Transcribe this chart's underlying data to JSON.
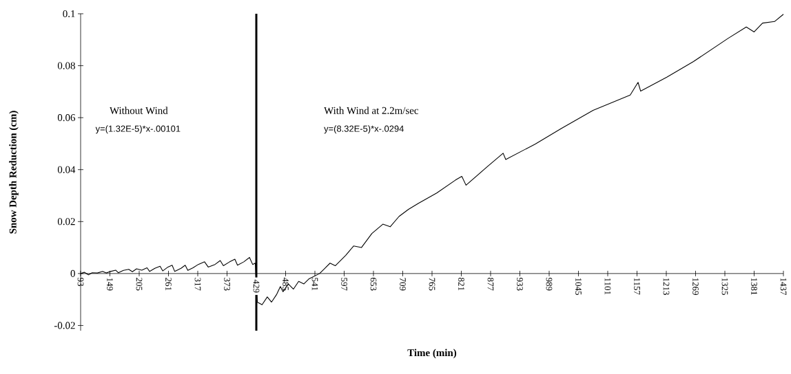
{
  "chart_data": {
    "type": "line",
    "xlabel": "Time (min)",
    "ylabel": "Snow Depth Reduction (cm)",
    "annotations": [
      "Without Wind",
      "y=(1.32E-5)*x-.00101",
      "With Wind at 2.2m/sec",
      "y=(8.32E-5)*x-.0294"
    ],
    "xlim": [
      93,
      1437
    ],
    "ylim": [
      -0.022,
      0.1
    ],
    "xticks": [
      93,
      149,
      205,
      261,
      317,
      373,
      429,
      485,
      541,
      597,
      653,
      709,
      765,
      821,
      877,
      933,
      989,
      1045,
      1101,
      1157,
      1213,
      1269,
      1325,
      1381,
      1437
    ],
    "yticks": [
      -0.02,
      0,
      0.02,
      0.04,
      0.06,
      0.08,
      0.1
    ],
    "marker": "none",
    "line_style": "solid",
    "ref_lines": [
      {
        "axis": "x",
        "value": 429,
        "color": "#000000"
      }
    ],
    "series": [
      {
        "color": "#000000",
        "x": [
          93,
          100,
          108,
          115,
          125,
          135,
          142,
          150,
          160,
          165,
          175,
          185,
          192,
          200,
          210,
          220,
          225,
          235,
          245,
          250,
          260,
          268,
          273,
          285,
          293,
          298,
          308,
          318,
          330,
          337,
          350,
          360,
          366,
          378,
          388,
          393,
          405,
          416,
          422,
          427,
          431,
          440,
          450,
          458,
          468,
          475,
          480,
          490,
          500,
          510,
          520,
          530,
          550,
          560,
          570,
          580,
          600,
          615,
          630,
          650,
          671,
          685,
          702,
          720,
          739,
          774,
          810,
          822,
          830,
          870,
          901,
          906,
          962,
          1012,
          1073,
          1144,
          1159,
          1164,
          1214,
          1265,
          1331,
          1366,
          1381,
          1397,
          1420,
          1437
        ],
        "values": [
          0,
          0.0005,
          -0.0005,
          0.0003,
          0.0002,
          0.0008,
          0.0002,
          0.0008,
          0.0013,
          0.0003,
          0.0012,
          0.0016,
          0.0007,
          0.0018,
          0.0013,
          0.0022,
          0.0008,
          0.002,
          0.0028,
          0.001,
          0.0025,
          0.0032,
          0.0008,
          0.002,
          0.0032,
          0.0012,
          0.0022,
          0.0035,
          0.0045,
          0.0025,
          0.0035,
          0.005,
          0.003,
          0.0045,
          0.0055,
          0.0032,
          0.0045,
          0.0062,
          0.0035,
          0.004,
          -0.011,
          -0.012,
          -0.009,
          -0.011,
          -0.008,
          -0.005,
          -0.007,
          -0.004,
          -0.006,
          -0.003,
          -0.004,
          -0.002,
          0,
          0.002,
          0.004,
          0.003,
          0.007,
          0.0106,
          0.01,
          0.0154,
          0.019,
          0.018,
          0.022,
          0.0247,
          0.027,
          0.031,
          0.036,
          0.0374,
          0.034,
          0.041,
          0.0463,
          0.0439,
          0.0498,
          0.0558,
          0.0628,
          0.0687,
          0.0736,
          0.0702,
          0.0756,
          0.0816,
          0.0905,
          0.0949,
          0.093,
          0.0964,
          0.097,
          0.0998
        ]
      }
    ]
  }
}
